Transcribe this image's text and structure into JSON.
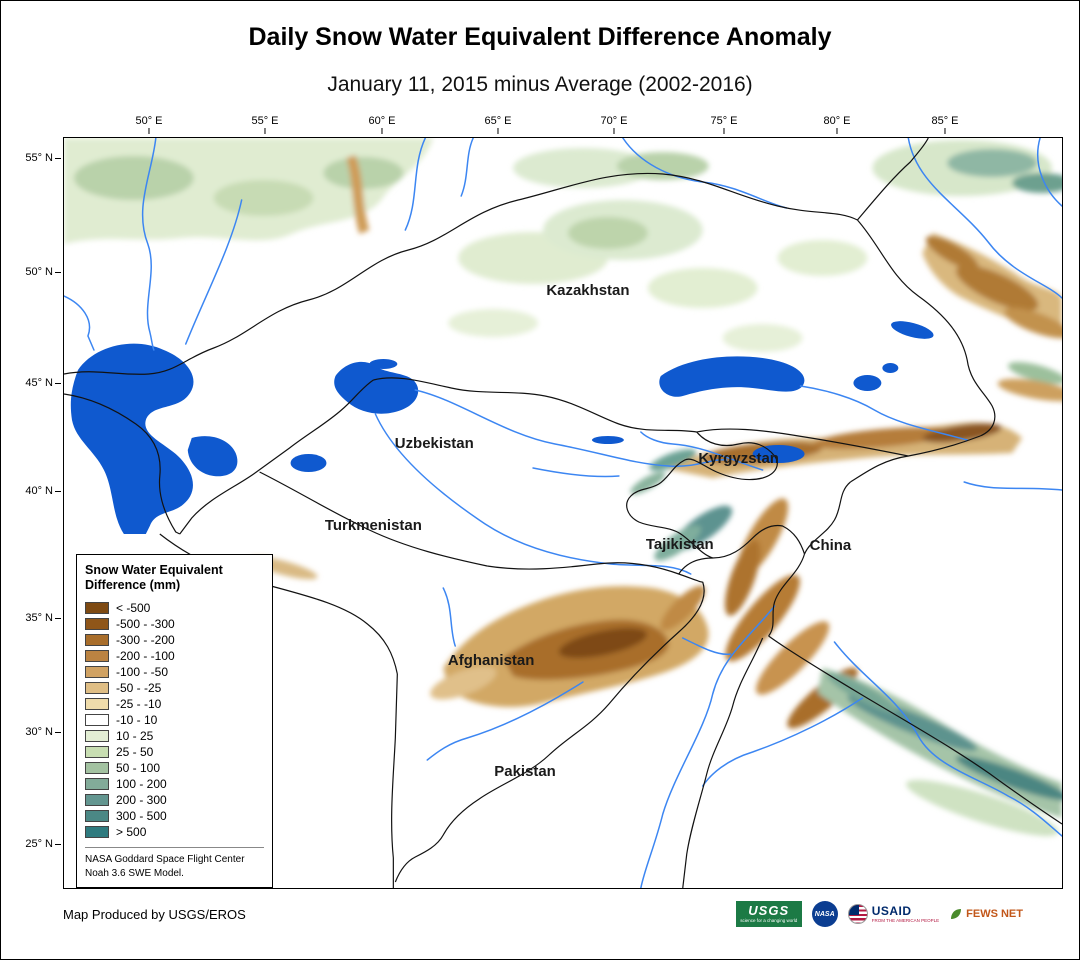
{
  "header": {
    "title": "Daily Snow Water Equivalent Difference Anomaly",
    "subtitle": "January 11, 2015 minus Average (2002-2016)"
  },
  "axes": {
    "longitude": [
      "50° E",
      "55° E",
      "60° E",
      "65° E",
      "70° E",
      "75° E",
      "80° E",
      "85° E"
    ],
    "latitude": [
      "55° N",
      "50° N",
      "45° N",
      "40° N",
      "35° N",
      "30° N",
      "25° N"
    ]
  },
  "map": {
    "countries": [
      "Kazakhstan",
      "Uzbekistan",
      "Turkmenistan",
      "Kyrgyzstan",
      "Tajikistan",
      "China",
      "Afghanistan",
      "Pakistan"
    ]
  },
  "legend": {
    "title_line1": "Snow Water Equivalent",
    "title_line2": "Difference (mm)",
    "items": [
      {
        "label": "< -500",
        "color": "#7e4a12"
      },
      {
        "label": "-500 - -300",
        "color": "#8f5619"
      },
      {
        "label": "-300 - -200",
        "color": "#a96e2b"
      },
      {
        "label": "-200 - -100",
        "color": "#bb8342"
      },
      {
        "label": "-100 - -50",
        "color": "#d0a263"
      },
      {
        "label": "-50 - -25",
        "color": "#dfbe85"
      },
      {
        "label": "-25 - -10",
        "color": "#efdcab"
      },
      {
        "label": "-10 - 10",
        "color": "#ffffff"
      },
      {
        "label": "10 - 25",
        "color": "#e3eed4"
      },
      {
        "label": "25 - 50",
        "color": "#c8deb2"
      },
      {
        "label": "50 - 100",
        "color": "#a3c2a1"
      },
      {
        "label": "100 - 200",
        "color": "#82ab99"
      },
      {
        "label": "200 - 300",
        "color": "#639690"
      },
      {
        "label": "300 - 500",
        "color": "#4b8885"
      },
      {
        "label": "> 500",
        "color": "#2f7b7f"
      }
    ],
    "credit_line1": "NASA Goddard Space Flight Center",
    "credit_line2": "Noah 3.6 SWE Model."
  },
  "footer": {
    "credit": "Map Produced by USGS/EROS",
    "logos": [
      {
        "name": "USGS",
        "text": "USGS",
        "tagline": "science for a changing world",
        "color": "#1c7a45"
      },
      {
        "name": "NASA",
        "text": "NASA",
        "color": "#0b3d91"
      },
      {
        "name": "USAID",
        "text": "USAID",
        "tagline": "FROM THE AMERICAN PEOPLE",
        "color": "#002a6c",
        "accent": "#b31942"
      },
      {
        "name": "FEWS NET",
        "text": "FEWS NET",
        "color": "#c2571a",
        "accent": "#4a8b2c"
      }
    ]
  },
  "colors": {
    "water": "#0f59cf",
    "river": "#3c86f2",
    "border": "#121212",
    "label": "#1a1a1a"
  }
}
